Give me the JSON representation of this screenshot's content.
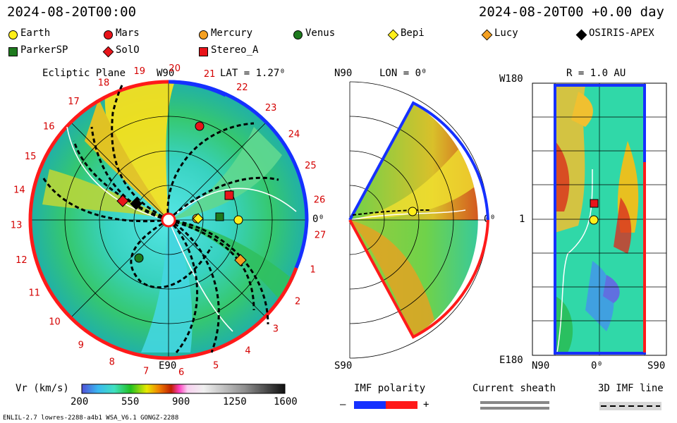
{
  "header": {
    "left_time": "2024-08-20T00:00",
    "right_time": "2024-08-20T00 +0.00 day"
  },
  "legend": [
    {
      "label": "Earth",
      "shape": "circle",
      "color": "#ffef1a"
    },
    {
      "label": "Mars",
      "shape": "circle",
      "color": "#e8141a"
    },
    {
      "label": "Mercury",
      "shape": "circle",
      "color": "#f5a021"
    },
    {
      "label": "Venus",
      "shape": "circle",
      "color": "#1e7a1e"
    },
    {
      "label": "Bepi",
      "shape": "diamond",
      "color": "#ffef1a"
    },
    {
      "label": "Lucy",
      "shape": "diamond",
      "color": "#f5a021"
    },
    {
      "label": "OSIRIS-APEX",
      "shape": "diamond",
      "color": "#000000"
    },
    {
      "label": "ParkerSP",
      "shape": "square",
      "color": "#1e7a1e"
    },
    {
      "label": "SolO",
      "shape": "diamond",
      "color": "#e8141a"
    },
    {
      "label": "Stereo_A",
      "shape": "square",
      "color": "#e8141a"
    }
  ],
  "panels": {
    "ecliptic": {
      "title": "Ecliptic Plane",
      "lat": "LAT = 1.27⁰",
      "top": "W90",
      "bottom": "E90",
      "right": "0⁰",
      "sector_labels": [
        "19",
        "20",
        "21",
        "22",
        "23",
        "24",
        "25",
        "26",
        "27",
        "1",
        "2",
        "3",
        "4",
        "5",
        "6",
        "7",
        "8",
        "9",
        "10",
        "11",
        "12",
        "13",
        "14",
        "15",
        "16",
        "17",
        "18"
      ]
    },
    "meridional": {
      "top": "N90",
      "lon": "LON = 0⁰",
      "bottom": "S90",
      "right": "0⁰"
    },
    "synoptic": {
      "top_left": "W180",
      "r": "R = 1.0 AU",
      "mid_left": "1",
      "bottom_left": "E180",
      "x_left": "N90",
      "x_mid": "0⁰",
      "x_right": "S90"
    }
  },
  "colorbar": {
    "label": "Vr (km/s)",
    "ticks": [
      "200",
      "550",
      "900",
      "1250",
      "1600"
    ]
  },
  "imf": {
    "title": "IMF polarity",
    "minus": "–",
    "plus": "+"
  },
  "sheath": {
    "title": "Current sheath"
  },
  "imf3d": {
    "title": "3D IMF line"
  },
  "footer": {
    "model": "ENLIL-2.7 lowres-2288-a4b1 WSA_V6.1 GONGZ-2288"
  },
  "chart_data": [
    {
      "type": "heatmap",
      "title": "Ecliptic Plane",
      "subtitle": "LAT = 1.27⁰",
      "quantity": "Vr (km/s)",
      "range": [
        200,
        1600
      ],
      "objects": [
        "Earth",
        "Mars",
        "Mercury",
        "Venus",
        "Bepi",
        "Lucy",
        "OSIRIS-APEX",
        "ParkerSP",
        "SolO",
        "Stereo_A"
      ]
    },
    {
      "type": "heatmap",
      "title": "LON = 0⁰",
      "quantity": "Vr (km/s)",
      "objects": [
        "Earth"
      ]
    },
    {
      "type": "heatmap",
      "title": "R = 1.0 AU",
      "quantity": "Vr (km/s)",
      "objects": [
        "Earth",
        "Stereo_A"
      ]
    }
  ]
}
